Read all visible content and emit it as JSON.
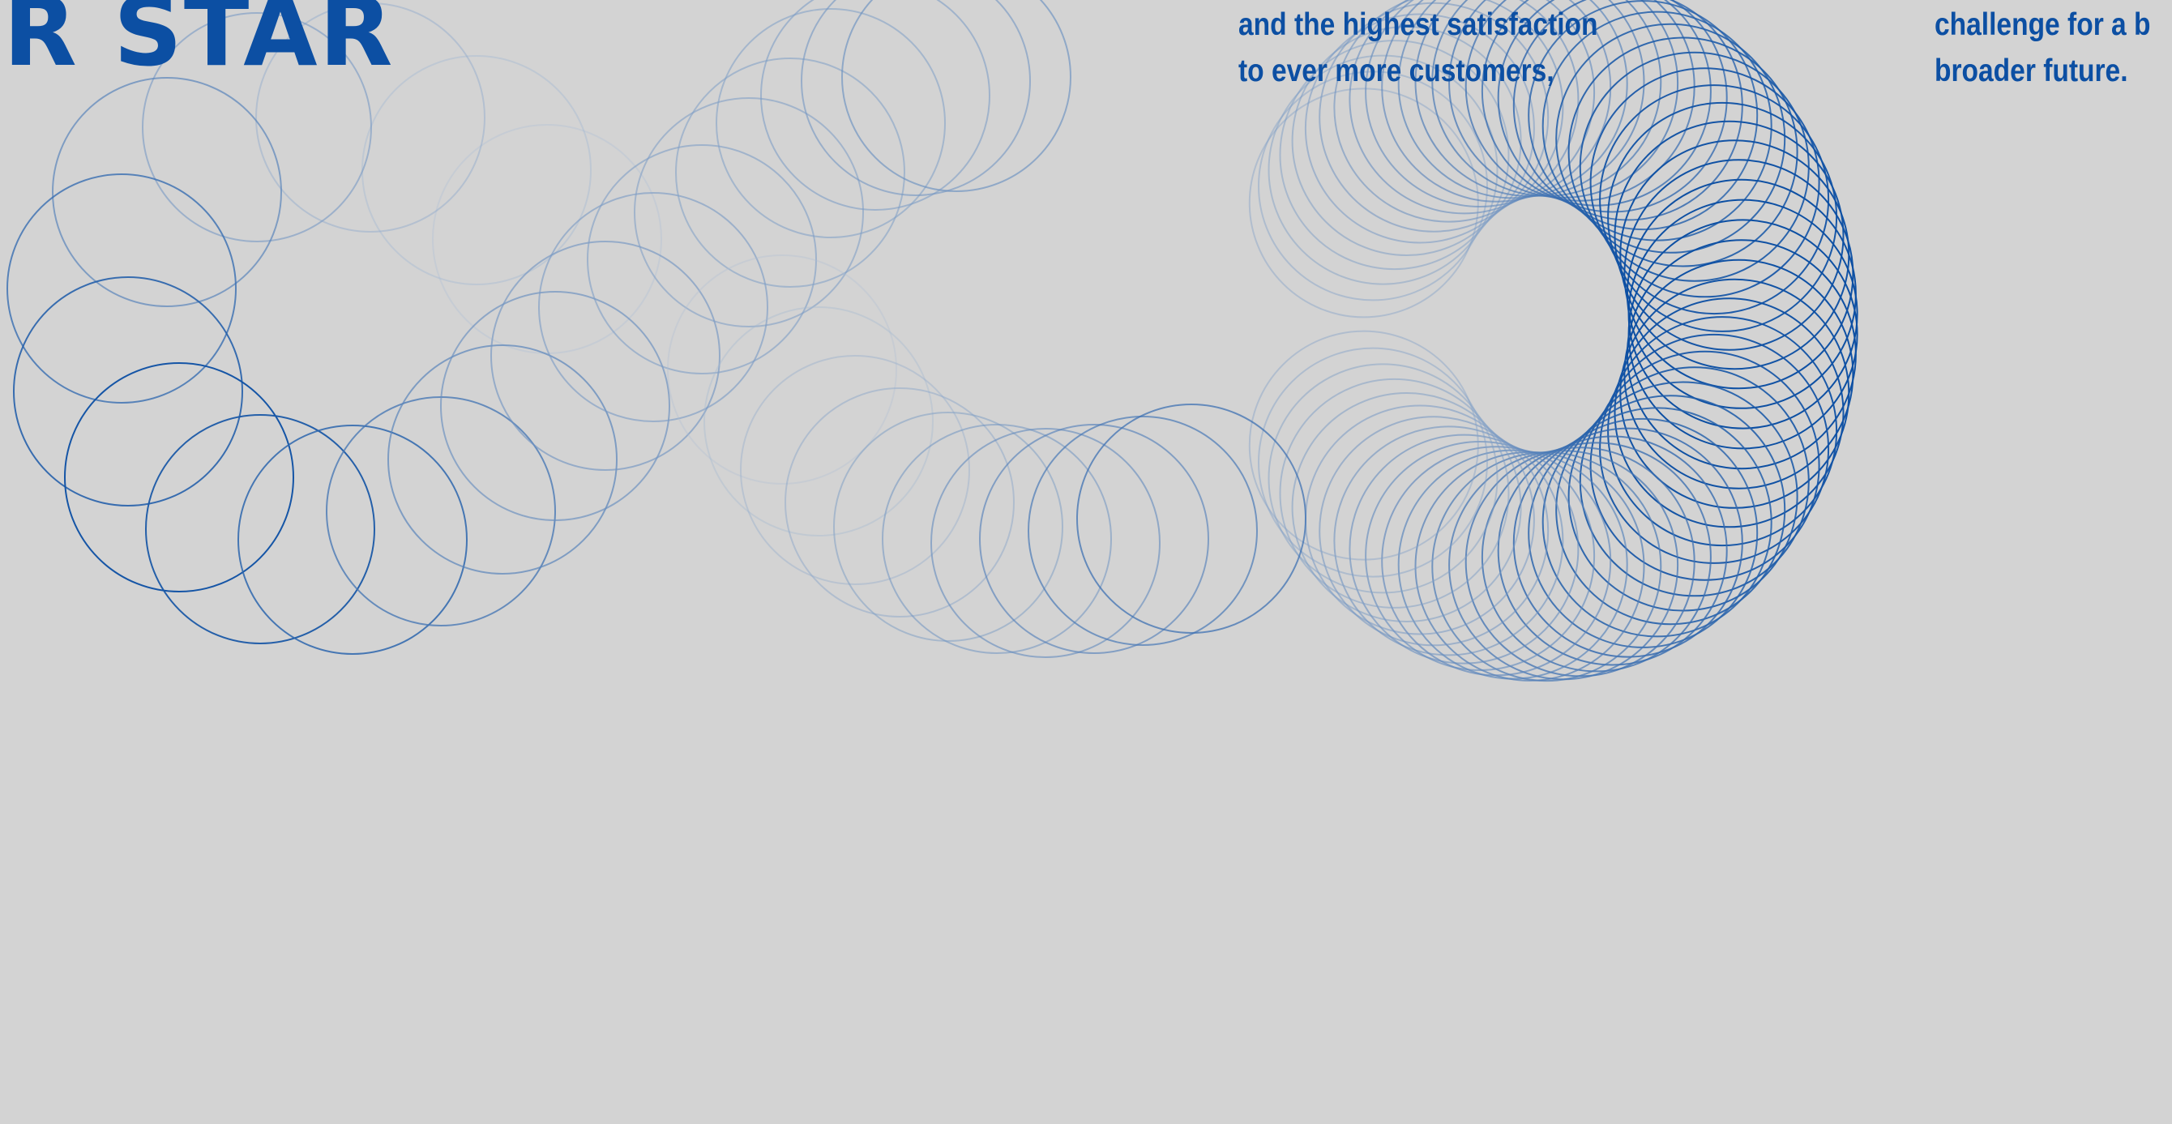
{
  "headline": "R STAR",
  "copy_middle": {
    "line1": "and the highest satisfaction",
    "line2": "to ever more customers,"
  },
  "copy_right": {
    "line1": "challenge for a b",
    "line2": "broader future."
  },
  "colors": {
    "background": "#d3d3d3",
    "brand_blue": "#0c4fa3",
    "ring_pale": "#b9c6d8"
  }
}
